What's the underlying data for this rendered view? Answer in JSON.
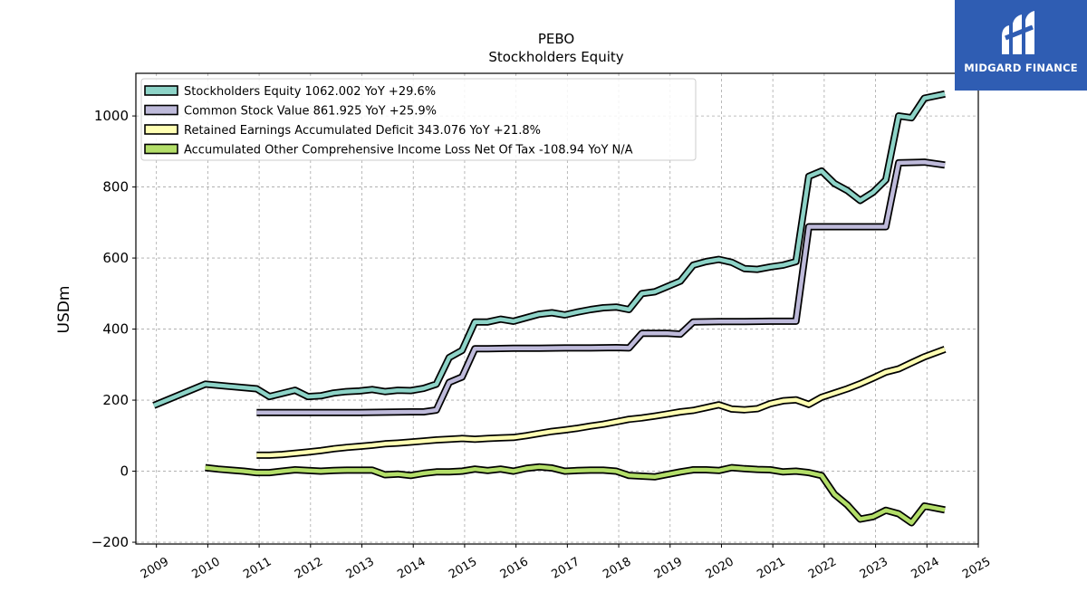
{
  "logo": {
    "text": "MIDGARD FINANCE"
  },
  "chart_data": {
    "type": "line",
    "title": "PEBO",
    "subtitle": "Stockholders  Equity",
    "xlabel": "",
    "ylabel": "USDm",
    "xlim": [
      2008.6,
      2025.0
    ],
    "ylim": [
      -205,
      1120
    ],
    "grid": true,
    "legend_position": "top-left",
    "x_ticks": [
      2009,
      2010,
      2011,
      2012,
      2013,
      2014,
      2015,
      2016,
      2017,
      2018,
      2019,
      2020,
      2021,
      2022,
      2023,
      2024,
      2025
    ],
    "y_ticks": [
      -200,
      0,
      200,
      400,
      600,
      800,
      1000
    ],
    "series": [
      {
        "name": "Stockholders Equity",
        "legend": "Stockholders Equity  1062.002 YoY +29.6%",
        "color": "#8dd3c7",
        "points": [
          [
            2008.95,
            185
          ],
          [
            2009.95,
            245
          ],
          [
            2010.95,
            232
          ],
          [
            2011.2,
            210
          ],
          [
            2011.7,
            228
          ],
          [
            2011.95,
            210
          ],
          [
            2012.2,
            212
          ],
          [
            2012.45,
            220
          ],
          [
            2012.7,
            224
          ],
          [
            2012.95,
            226
          ],
          [
            2013.2,
            230
          ],
          [
            2013.45,
            224
          ],
          [
            2013.7,
            228
          ],
          [
            2013.95,
            227
          ],
          [
            2014.2,
            233
          ],
          [
            2014.45,
            245
          ],
          [
            2014.7,
            320
          ],
          [
            2014.95,
            340
          ],
          [
            2015.2,
            420
          ],
          [
            2015.45,
            420
          ],
          [
            2015.7,
            428
          ],
          [
            2015.95,
            422
          ],
          [
            2016.2,
            432
          ],
          [
            2016.45,
            442
          ],
          [
            2016.7,
            446
          ],
          [
            2016.95,
            440
          ],
          [
            2017.2,
            448
          ],
          [
            2017.45,
            455
          ],
          [
            2017.7,
            460
          ],
          [
            2017.95,
            462
          ],
          [
            2018.2,
            455
          ],
          [
            2018.45,
            500
          ],
          [
            2018.7,
            505
          ],
          [
            2018.95,
            520
          ],
          [
            2019.2,
            535
          ],
          [
            2019.45,
            580
          ],
          [
            2019.7,
            590
          ],
          [
            2019.95,
            596
          ],
          [
            2020.2,
            588
          ],
          [
            2020.45,
            570
          ],
          [
            2020.7,
            568
          ],
          [
            2020.95,
            575
          ],
          [
            2021.2,
            580
          ],
          [
            2021.45,
            590
          ],
          [
            2021.7,
            830
          ],
          [
            2021.95,
            845
          ],
          [
            2022.2,
            810
          ],
          [
            2022.45,
            790
          ],
          [
            2022.7,
            762
          ],
          [
            2022.95,
            785
          ],
          [
            2023.2,
            820
          ],
          [
            2023.45,
            1000
          ],
          [
            2023.7,
            995
          ],
          [
            2023.95,
            1050
          ],
          [
            2024.35,
            1062
          ]
        ]
      },
      {
        "name": "Common Stock Value",
        "legend": "Common Stock Value  861.925 YoY +25.9%",
        "color": "#bebada",
        "points": [
          [
            2010.95,
            165
          ],
          [
            2011.45,
            165
          ],
          [
            2011.95,
            165
          ],
          [
            2012.45,
            165
          ],
          [
            2012.95,
            165
          ],
          [
            2013.45,
            166
          ],
          [
            2013.95,
            167
          ],
          [
            2014.2,
            167
          ],
          [
            2014.45,
            172
          ],
          [
            2014.7,
            250
          ],
          [
            2014.95,
            265
          ],
          [
            2015.2,
            345
          ],
          [
            2015.45,
            345
          ],
          [
            2015.95,
            346
          ],
          [
            2016.45,
            346
          ],
          [
            2016.95,
            347
          ],
          [
            2017.45,
            347
          ],
          [
            2017.95,
            348
          ],
          [
            2018.2,
            347
          ],
          [
            2018.45,
            388
          ],
          [
            2018.95,
            388
          ],
          [
            2019.2,
            386
          ],
          [
            2019.45,
            420
          ],
          [
            2019.95,
            421
          ],
          [
            2020.45,
            421
          ],
          [
            2020.95,
            422
          ],
          [
            2021.45,
            422
          ],
          [
            2021.7,
            688
          ],
          [
            2021.95,
            688
          ],
          [
            2022.45,
            688
          ],
          [
            2022.95,
            688
          ],
          [
            2023.2,
            688
          ],
          [
            2023.45,
            868
          ],
          [
            2023.95,
            870
          ],
          [
            2024.35,
            862
          ]
        ]
      },
      {
        "name": "Retained Earnings Accumulated Deficit",
        "legend": "Retained Earnings Accumulated Deficit  343.076 YoY +21.8%",
        "color": "#ffffb3",
        "points": [
          [
            2010.95,
            45
          ],
          [
            2011.2,
            45
          ],
          [
            2011.45,
            47
          ],
          [
            2011.95,
            54
          ],
          [
            2012.2,
            58
          ],
          [
            2012.45,
            63
          ],
          [
            2012.7,
            67
          ],
          [
            2012.95,
            70
          ],
          [
            2013.2,
            73
          ],
          [
            2013.45,
            77
          ],
          [
            2013.7,
            79
          ],
          [
            2013.95,
            82
          ],
          [
            2014.2,
            85
          ],
          [
            2014.45,
            88
          ],
          [
            2014.7,
            90
          ],
          [
            2014.95,
            92
          ],
          [
            2015.2,
            90
          ],
          [
            2015.45,
            92
          ],
          [
            2015.7,
            94
          ],
          [
            2015.95,
            95
          ],
          [
            2016.2,
            100
          ],
          [
            2016.45,
            106
          ],
          [
            2016.7,
            112
          ],
          [
            2016.95,
            116
          ],
          [
            2017.2,
            121
          ],
          [
            2017.45,
            127
          ],
          [
            2017.7,
            132
          ],
          [
            2017.95,
            139
          ],
          [
            2018.2,
            146
          ],
          [
            2018.45,
            150
          ],
          [
            2018.7,
            155
          ],
          [
            2018.95,
            161
          ],
          [
            2019.2,
            167
          ],
          [
            2019.45,
            171
          ],
          [
            2019.7,
            179
          ],
          [
            2019.95,
            187
          ],
          [
            2020.2,
            175
          ],
          [
            2020.45,
            173
          ],
          [
            2020.7,
            176
          ],
          [
            2020.95,
            190
          ],
          [
            2021.2,
            198
          ],
          [
            2021.45,
            201
          ],
          [
            2021.7,
            188
          ],
          [
            2021.95,
            208
          ],
          [
            2022.2,
            220
          ],
          [
            2022.45,
            232
          ],
          [
            2022.7,
            246
          ],
          [
            2022.95,
            262
          ],
          [
            2023.2,
            279
          ],
          [
            2023.45,
            288
          ],
          [
            2023.7,
            305
          ],
          [
            2023.95,
            322
          ],
          [
            2024.35,
            343
          ]
        ]
      },
      {
        "name": "Accumulated Other Comprehensive Income Loss Net Of Tax",
        "legend": "Accumulated Other Comprehensive Income Loss Net Of Tax  -108.94 YoY N/A",
        "color": "#b3de69",
        "points": [
          [
            2009.95,
            10
          ],
          [
            2010.2,
            6
          ],
          [
            2010.45,
            3
          ],
          [
            2010.7,
            0
          ],
          [
            2010.95,
            -4
          ],
          [
            2011.2,
            -4
          ],
          [
            2011.45,
            0
          ],
          [
            2011.7,
            4
          ],
          [
            2011.95,
            2
          ],
          [
            2012.2,
            0
          ],
          [
            2012.45,
            2
          ],
          [
            2012.7,
            3
          ],
          [
            2012.95,
            3
          ],
          [
            2013.2,
            3
          ],
          [
            2013.45,
            -10
          ],
          [
            2013.7,
            -8
          ],
          [
            2013.95,
            -12
          ],
          [
            2014.2,
            -6
          ],
          [
            2014.45,
            -2
          ],
          [
            2014.7,
            -2
          ],
          [
            2014.95,
            0
          ],
          [
            2015.2,
            6
          ],
          [
            2015.45,
            2
          ],
          [
            2015.7,
            6
          ],
          [
            2015.95,
            0
          ],
          [
            2016.2,
            8
          ],
          [
            2016.45,
            12
          ],
          [
            2016.7,
            9
          ],
          [
            2016.95,
            0
          ],
          [
            2017.2,
            2
          ],
          [
            2017.45,
            3
          ],
          [
            2017.7,
            3
          ],
          [
            2017.95,
            0
          ],
          [
            2018.2,
            -12
          ],
          [
            2018.45,
            -14
          ],
          [
            2018.7,
            -16
          ],
          [
            2018.95,
            -9
          ],
          [
            2019.2,
            -2
          ],
          [
            2019.45,
            4
          ],
          [
            2019.7,
            4
          ],
          [
            2019.95,
            2
          ],
          [
            2020.2,
            10
          ],
          [
            2020.45,
            7
          ],
          [
            2020.7,
            5
          ],
          [
            2020.95,
            4
          ],
          [
            2021.2,
            -2
          ],
          [
            2021.45,
            0
          ],
          [
            2021.7,
            -4
          ],
          [
            2021.95,
            -12
          ],
          [
            2022.2,
            -65
          ],
          [
            2022.45,
            -95
          ],
          [
            2022.7,
            -135
          ],
          [
            2022.95,
            -128
          ],
          [
            2023.2,
            -110
          ],
          [
            2023.45,
            -120
          ],
          [
            2023.7,
            -145
          ],
          [
            2023.95,
            -98
          ],
          [
            2024.35,
            -109
          ]
        ]
      }
    ]
  }
}
